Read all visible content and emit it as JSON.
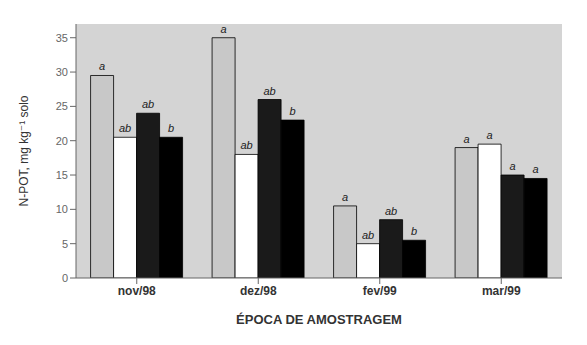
{
  "chart_data": {
    "type": "bar",
    "xlabel": "ÉPOCA DE AMOSTRAGEM",
    "ylabel": "N-POT, mg kg⁻¹ solo",
    "categories": [
      "nov/98",
      "dez/98",
      "fev/99",
      "mar/99"
    ],
    "series": [
      {
        "color": "#c8c8c8",
        "values": [
          29.5,
          35.0,
          10.5,
          19.0
        ],
        "annotations": [
          "a",
          "a",
          "a",
          "a"
        ]
      },
      {
        "color": "#ffffff",
        "values": [
          20.5,
          18.0,
          5.0,
          19.5
        ],
        "annotations": [
          "ab",
          "ab",
          "ab",
          "a"
        ]
      },
      {
        "color": "#1a1a1a",
        "values": [
          24.0,
          26.0,
          8.5,
          15.0
        ],
        "annotations": [
          "ab",
          "ab",
          "ab",
          "a"
        ]
      },
      {
        "color": "#000000",
        "values": [
          20.5,
          23.0,
          5.5,
          14.5
        ],
        "annotations": [
          "b",
          "b",
          "b",
          "a"
        ]
      }
    ],
    "ylim": [
      0,
      37
    ],
    "yticks": [
      0,
      5,
      10,
      15,
      20,
      25,
      30,
      35
    ],
    "grid": false
  }
}
